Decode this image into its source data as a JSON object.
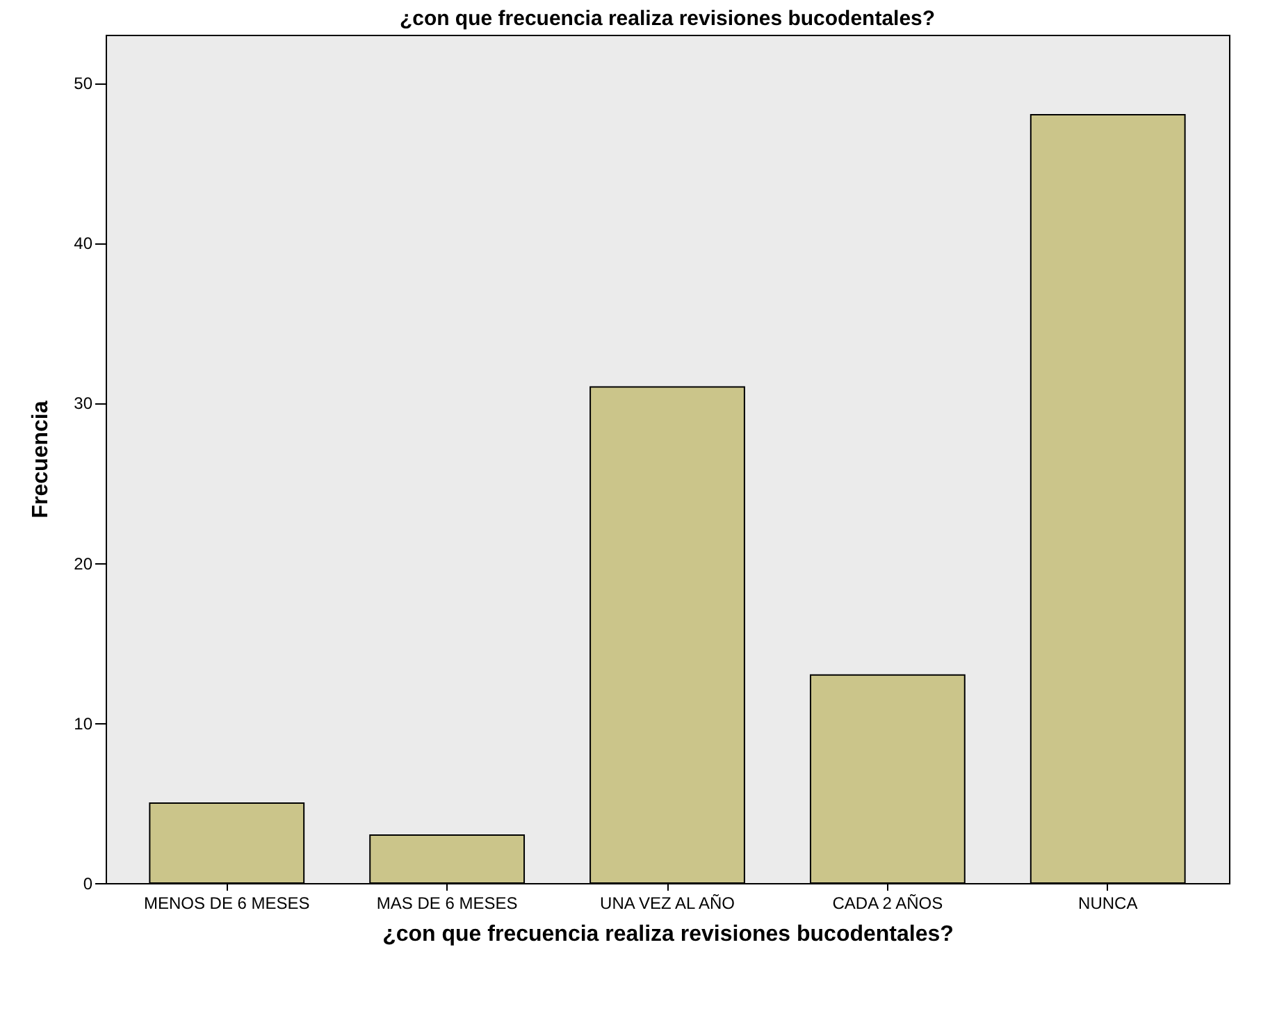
{
  "chart_data": {
    "type": "bar",
    "title": "¿con que frecuencia realiza revisiones bucodentales?",
    "xlabel": "¿con que frecuencia realiza revisiones bucodentales?",
    "ylabel": "Frecuencia",
    "categories": [
      "MENOS DE 6 MESES",
      "MAS DE 6 MESES",
      "UNA VEZ AL AÑO",
      "CADA 2 AÑOS",
      "NUNCA"
    ],
    "values": [
      5,
      3,
      31,
      13,
      48
    ],
    "color": "#cbc58a",
    "ylim": [
      0,
      53
    ],
    "yticks": [
      0,
      10,
      20,
      30,
      40,
      50
    ],
    "grid": false
  }
}
